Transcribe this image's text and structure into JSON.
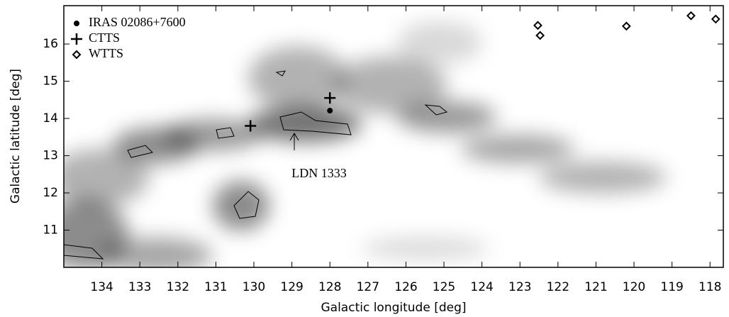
{
  "chart_data": {
    "type": "scatter",
    "xlabel": "Galactic longitude [deg]",
    "ylabel": "Galactic latitude [deg]",
    "xlim": [
      135.0,
      117.65
    ],
    "ylim": [
      10.0,
      17.03
    ],
    "xticks": [
      134,
      133,
      132,
      131,
      130,
      129,
      128,
      127,
      126,
      125,
      124,
      123,
      122,
      121,
      120,
      119,
      118
    ],
    "yticks": [
      11,
      12,
      13,
      14,
      15,
      16
    ],
    "series": [
      {
        "name": "IRAS 02086+7600",
        "marker": "circle",
        "color": "#000000",
        "x": [
          128.0
        ],
        "values": [
          14.21
        ]
      },
      {
        "name": "CTTS",
        "marker": "plus",
        "color": "#000000",
        "x": [
          128.0,
          130.09
        ],
        "values": [
          14.55,
          13.8
        ]
      },
      {
        "name": "WTTS",
        "marker": "diamond",
        "color": "#000000",
        "x": [
          122.53,
          122.47,
          120.2,
          118.5,
          117.85
        ],
        "values": [
          16.5,
          16.23,
          16.48,
          16.76,
          16.67
        ]
      }
    ],
    "annotations": [
      {
        "text": "LDN 1333"
      }
    ]
  }
}
